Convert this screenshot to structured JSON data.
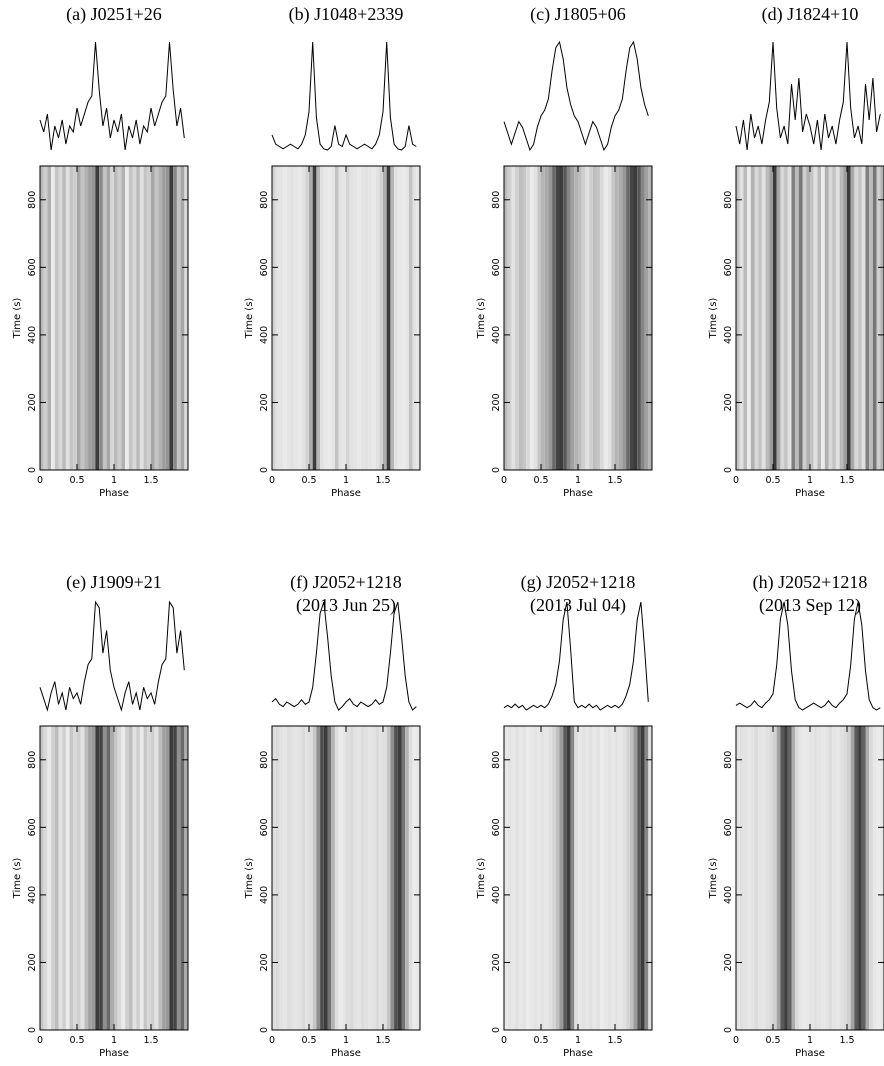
{
  "chart_data": [
    {
      "type": "pulsar",
      "title": "(a) J0251+26",
      "xlabel": "Phase",
      "ylabel": "Time (s)",
      "x": [
        0,
        0.05,
        0.1,
        0.15,
        0.2,
        0.25,
        0.3,
        0.35,
        0.4,
        0.45,
        0.5,
        0.55,
        0.6,
        0.65,
        0.7,
        0.75,
        0.8,
        0.85,
        0.9,
        0.95,
        1,
        1.05,
        1.1,
        1.15,
        1.2,
        1.25,
        1.3,
        1.35,
        1.4,
        1.45,
        1.5,
        1.55,
        1.6,
        1.65,
        1.7,
        1.75,
        1.8,
        1.85,
        1.9,
        1.95
      ],
      "values": [
        0.35,
        0.25,
        0.4,
        0.1,
        0.3,
        0.2,
        0.35,
        0.15,
        0.3,
        0.25,
        0.45,
        0.3,
        0.4,
        0.5,
        0.55,
        1.0,
        0.6,
        0.3,
        0.45,
        0.2,
        0.35,
        0.25,
        0.4,
        0.1,
        0.3,
        0.2,
        0.35,
        0.15,
        0.3,
        0.25,
        0.45,
        0.3,
        0.4,
        0.5,
        0.55,
        1.0,
        0.6,
        0.3,
        0.45,
        0.2
      ],
      "xlim": [
        0,
        2
      ],
      "ylim": [
        0,
        900
      ],
      "xticks": [
        0,
        0.5,
        1,
        1.5
      ],
      "yticks": [
        0,
        200,
        400,
        600,
        800
      ]
    },
    {
      "type": "pulsar",
      "title": "(b) J1048+2339",
      "xlabel": "Phase",
      "ylabel": "Time (s)",
      "x": [
        0,
        0.05,
        0.1,
        0.15,
        0.2,
        0.25,
        0.3,
        0.35,
        0.4,
        0.45,
        0.5,
        0.55,
        0.6,
        0.65,
        0.7,
        0.75,
        0.8,
        0.85,
        0.9,
        0.95,
        1,
        1.05,
        1.1,
        1.15,
        1.2,
        1.25,
        1.3,
        1.35,
        1.4,
        1.45,
        1.5,
        1.55,
        1.6,
        1.65,
        1.7,
        1.75,
        1.8,
        1.85,
        1.9,
        1.95
      ],
      "values": [
        0.2,
        0.12,
        0.1,
        0.08,
        0.1,
        0.12,
        0.1,
        0.08,
        0.12,
        0.2,
        0.4,
        1.0,
        0.35,
        0.12,
        0.08,
        0.07,
        0.1,
        0.28,
        0.12,
        0.1,
        0.2,
        0.12,
        0.1,
        0.08,
        0.1,
        0.12,
        0.1,
        0.08,
        0.12,
        0.2,
        0.4,
        1.0,
        0.35,
        0.12,
        0.08,
        0.07,
        0.1,
        0.28,
        0.12,
        0.1
      ],
      "xlim": [
        0,
        2
      ],
      "ylim": [
        0,
        900
      ],
      "xticks": [
        0,
        0.5,
        1,
        1.5
      ],
      "yticks": [
        0,
        200,
        400,
        600,
        800
      ]
    },
    {
      "type": "pulsar",
      "title": "(c) J1805+06",
      "xlabel": "Phase",
      "ylabel": "Time (s)",
      "x": [
        0,
        0.05,
        0.1,
        0.15,
        0.2,
        0.25,
        0.3,
        0.35,
        0.4,
        0.45,
        0.5,
        0.55,
        0.6,
        0.65,
        0.7,
        0.75,
        0.8,
        0.85,
        0.9,
        0.95,
        1,
        1.05,
        1.1,
        1.15,
        1.2,
        1.25,
        1.3,
        1.35,
        1.4,
        1.45,
        1.5,
        1.55,
        1.6,
        1.65,
        1.7,
        1.75,
        1.8,
        1.85,
        1.9,
        1.95
      ],
      "values": [
        0.3,
        0.2,
        0.1,
        0.2,
        0.3,
        0.25,
        0.15,
        0.05,
        0.1,
        0.25,
        0.35,
        0.4,
        0.5,
        0.75,
        0.95,
        1.0,
        0.85,
        0.6,
        0.45,
        0.35,
        0.3,
        0.2,
        0.1,
        0.2,
        0.3,
        0.25,
        0.15,
        0.05,
        0.1,
        0.25,
        0.35,
        0.4,
        0.5,
        0.75,
        0.95,
        1.0,
        0.85,
        0.6,
        0.45,
        0.35
      ],
      "xlim": [
        0,
        2
      ],
      "ylim": [
        0,
        900
      ],
      "xticks": [
        0,
        0.5,
        1,
        1.5
      ],
      "yticks": [
        0,
        200,
        400,
        600,
        800
      ]
    },
    {
      "type": "pulsar",
      "title": "(d) J1824+10",
      "xlabel": "Phase",
      "ylabel": "Time (s)",
      "x": [
        0,
        0.05,
        0.1,
        0.15,
        0.2,
        0.25,
        0.3,
        0.35,
        0.4,
        0.45,
        0.5,
        0.55,
        0.6,
        0.65,
        0.7,
        0.75,
        0.8,
        0.85,
        0.9,
        0.95,
        1,
        1.05,
        1.1,
        1.15,
        1.2,
        1.25,
        1.3,
        1.35,
        1.4,
        1.45,
        1.5,
        1.55,
        1.6,
        1.65,
        1.7,
        1.75,
        1.8,
        1.85,
        1.9,
        1.95
      ],
      "values": [
        0.3,
        0.15,
        0.35,
        0.1,
        0.4,
        0.2,
        0.3,
        0.15,
        0.35,
        0.5,
        1.0,
        0.45,
        0.2,
        0.3,
        0.15,
        0.65,
        0.35,
        0.7,
        0.25,
        0.4,
        0.3,
        0.15,
        0.35,
        0.1,
        0.4,
        0.2,
        0.3,
        0.15,
        0.35,
        0.5,
        1.0,
        0.45,
        0.2,
        0.3,
        0.15,
        0.65,
        0.35,
        0.7,
        0.25,
        0.4
      ],
      "xlim": [
        0,
        2
      ],
      "ylim": [
        0,
        900
      ],
      "xticks": [
        0,
        0.5,
        1,
        1.5
      ],
      "yticks": [
        0,
        200,
        400,
        600,
        800
      ]
    },
    {
      "type": "pulsar",
      "title": "(e) J1909+21",
      "xlabel": "Phase",
      "ylabel": "Time (s)",
      "x": [
        0,
        0.05,
        0.1,
        0.15,
        0.2,
        0.25,
        0.3,
        0.35,
        0.4,
        0.45,
        0.5,
        0.55,
        0.6,
        0.65,
        0.7,
        0.75,
        0.8,
        0.85,
        0.9,
        0.95,
        1,
        1.05,
        1.1,
        1.15,
        1.2,
        1.25,
        1.3,
        1.35,
        1.4,
        1.45,
        1.5,
        1.55,
        1.6,
        1.65,
        1.7,
        1.75,
        1.8,
        1.85,
        1.9,
        1.95
      ],
      "values": [
        0.25,
        0.15,
        0.05,
        0.2,
        0.3,
        0.1,
        0.2,
        0.05,
        0.25,
        0.15,
        0.2,
        0.1,
        0.3,
        0.45,
        0.5,
        1.0,
        0.95,
        0.55,
        0.75,
        0.4,
        0.25,
        0.15,
        0.05,
        0.2,
        0.3,
        0.1,
        0.2,
        0.05,
        0.25,
        0.15,
        0.2,
        0.1,
        0.3,
        0.45,
        0.5,
        1.0,
        0.95,
        0.55,
        0.75,
        0.4
      ],
      "xlim": [
        0,
        2
      ],
      "ylim": [
        0,
        900
      ],
      "xticks": [
        0,
        0.5,
        1,
        1.5
      ],
      "yticks": [
        0,
        200,
        400,
        600,
        800
      ]
    },
    {
      "type": "pulsar",
      "title": "(f) J2052+1218",
      "subtitle": "(2013 Jun 25)",
      "xlabel": "Phase",
      "ylabel": "Time (s)",
      "x": [
        0,
        0.05,
        0.1,
        0.15,
        0.2,
        0.25,
        0.3,
        0.35,
        0.4,
        0.45,
        0.5,
        0.55,
        0.6,
        0.65,
        0.7,
        0.75,
        0.8,
        0.85,
        0.9,
        0.95,
        1,
        1.05,
        1.1,
        1.15,
        1.2,
        1.25,
        1.3,
        1.35,
        1.4,
        1.45,
        1.5,
        1.55,
        1.6,
        1.65,
        1.7,
        1.75,
        1.8,
        1.85,
        1.9,
        1.95
      ],
      "values": [
        0.12,
        0.15,
        0.1,
        0.08,
        0.12,
        0.1,
        0.08,
        0.1,
        0.14,
        0.1,
        0.12,
        0.25,
        0.55,
        0.9,
        1.0,
        0.7,
        0.35,
        0.12,
        0.05,
        0.08,
        0.12,
        0.15,
        0.1,
        0.08,
        0.12,
        0.1,
        0.08,
        0.1,
        0.14,
        0.1,
        0.12,
        0.25,
        0.55,
        0.9,
        1.0,
        0.7,
        0.35,
        0.12,
        0.05,
        0.08
      ],
      "xlim": [
        0,
        2
      ],
      "ylim": [
        0,
        900
      ],
      "xticks": [
        0,
        0.5,
        1,
        1.5
      ],
      "yticks": [
        0,
        200,
        400,
        600,
        800
      ]
    },
    {
      "type": "pulsar",
      "title": "(g) J2052+1218",
      "subtitle": "(2013 Jul 04)",
      "xlabel": "Phase",
      "ylabel": "Time (s)",
      "x": [
        0,
        0.05,
        0.1,
        0.15,
        0.2,
        0.25,
        0.3,
        0.35,
        0.4,
        0.45,
        0.5,
        0.55,
        0.6,
        0.65,
        0.7,
        0.75,
        0.8,
        0.85,
        0.9,
        0.95,
        1,
        1.05,
        1.1,
        1.15,
        1.2,
        1.25,
        1.3,
        1.35,
        1.4,
        1.45,
        1.5,
        1.55,
        1.6,
        1.65,
        1.7,
        1.75,
        1.8,
        1.85,
        1.9,
        1.95
      ],
      "values": [
        0.1,
        0.12,
        0.1,
        0.13,
        0.1,
        0.12,
        0.08,
        0.1,
        0.12,
        0.1,
        0.12,
        0.1,
        0.13,
        0.2,
        0.3,
        0.5,
        0.85,
        1.0,
        0.6,
        0.15,
        0.1,
        0.12,
        0.1,
        0.13,
        0.1,
        0.12,
        0.08,
        0.1,
        0.12,
        0.1,
        0.12,
        0.1,
        0.13,
        0.2,
        0.3,
        0.5,
        0.85,
        1.0,
        0.6,
        0.15
      ],
      "xlim": [
        0,
        2
      ],
      "ylim": [
        0,
        900
      ],
      "xticks": [
        0,
        0.5,
        1,
        1.5
      ],
      "yticks": [
        0,
        200,
        400,
        600,
        800
      ]
    },
    {
      "type": "pulsar",
      "title": "(h) J2052+1218",
      "subtitle": "(2013 Sep 12)",
      "xlabel": "Phase",
      "ylabel": "Time (s)",
      "x": [
        0,
        0.05,
        0.1,
        0.15,
        0.2,
        0.25,
        0.3,
        0.35,
        0.4,
        0.45,
        0.5,
        0.55,
        0.6,
        0.65,
        0.7,
        0.75,
        0.8,
        0.85,
        0.9,
        0.95,
        1,
        1.05,
        1.1,
        1.15,
        1.2,
        1.25,
        1.3,
        1.35,
        1.4,
        1.45,
        1.5,
        1.55,
        1.6,
        1.65,
        1.7,
        1.75,
        1.8,
        1.85,
        1.9,
        1.95
      ],
      "values": [
        0.1,
        0.12,
        0.1,
        0.08,
        0.1,
        0.14,
        0.1,
        0.08,
        0.12,
        0.15,
        0.2,
        0.45,
        0.85,
        1.0,
        0.8,
        0.4,
        0.15,
        0.08,
        0.06,
        0.08,
        0.1,
        0.12,
        0.1,
        0.08,
        0.1,
        0.14,
        0.1,
        0.08,
        0.12,
        0.15,
        0.2,
        0.45,
        0.85,
        1.0,
        0.8,
        0.4,
        0.15,
        0.08,
        0.06,
        0.08
      ],
      "xlim": [
        0,
        2
      ],
      "ylim": [
        0,
        900
      ],
      "xticks": [
        0,
        0.5,
        1,
        1.5
      ],
      "yticks": [
        0,
        200,
        400,
        600,
        800
      ]
    }
  ]
}
